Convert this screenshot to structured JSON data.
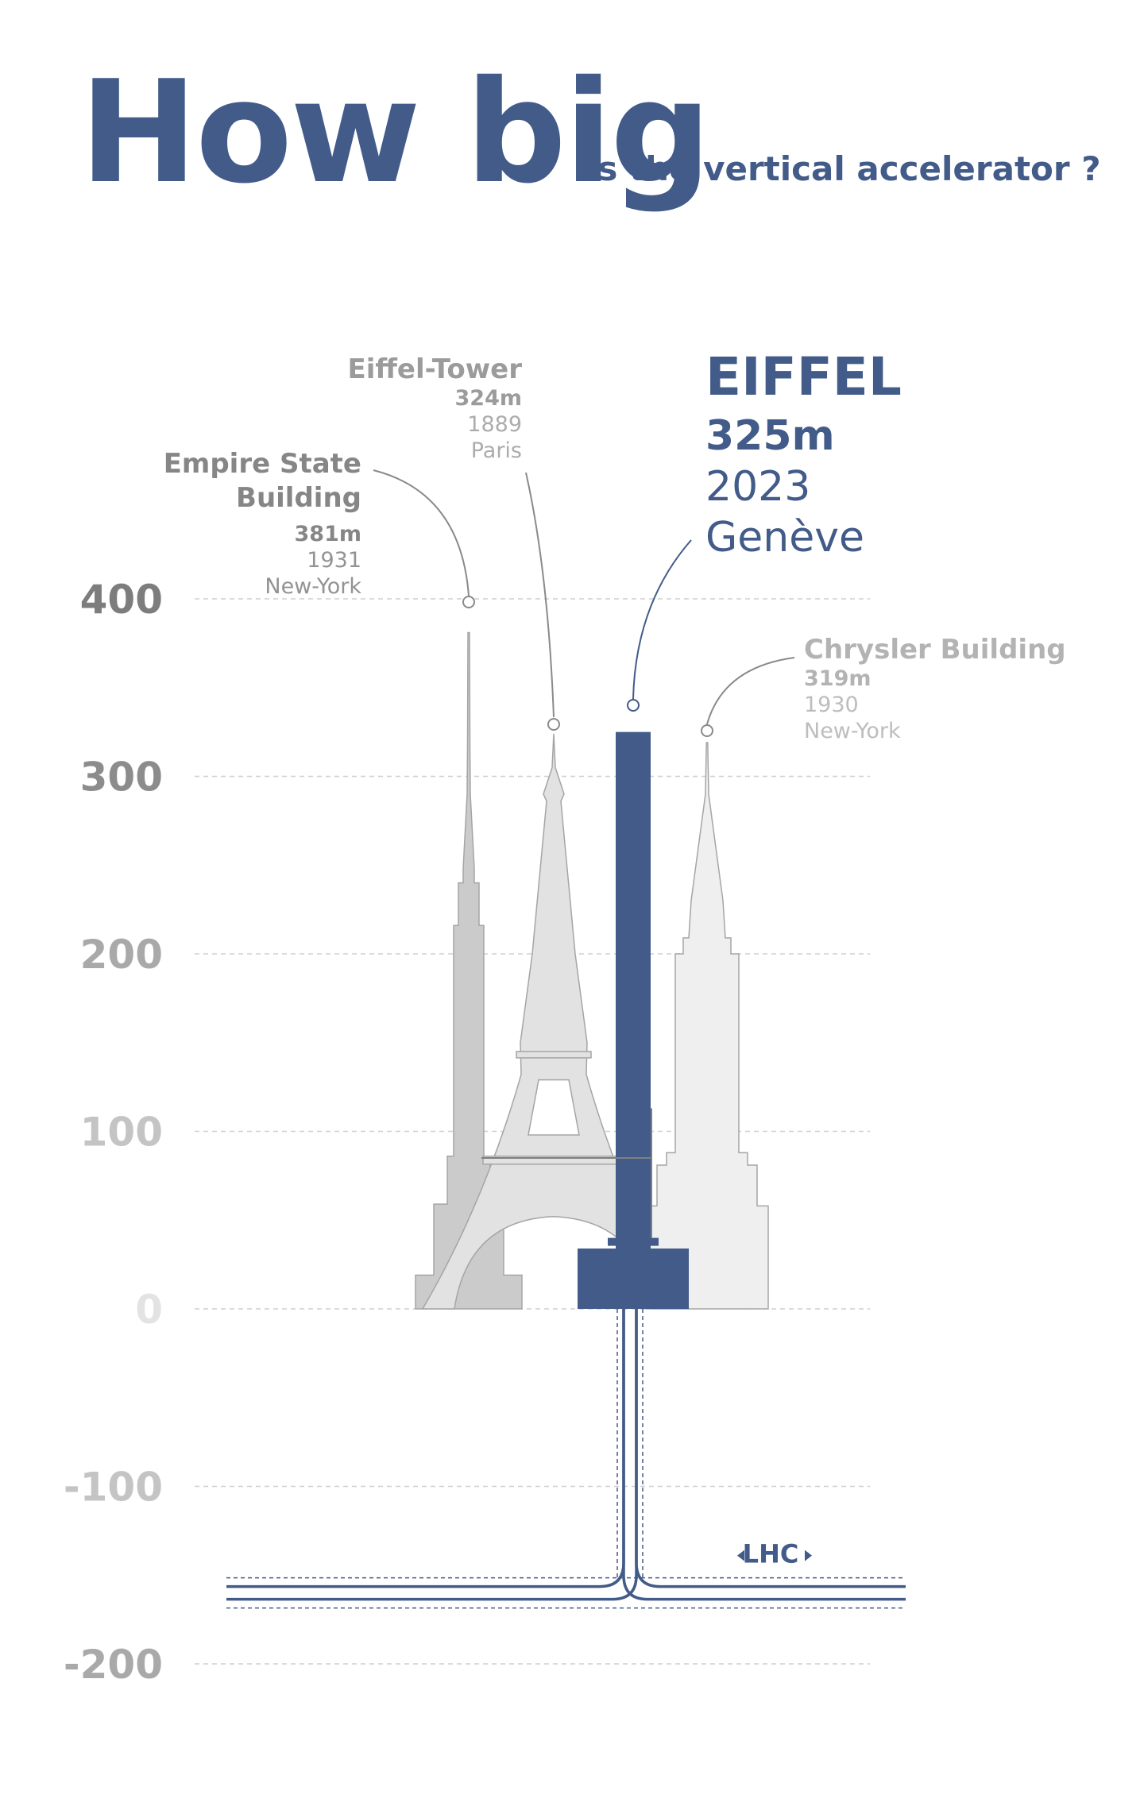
{
  "header": {
    "title": "How big",
    "subtitle": "is the vertical accelerator ?"
  },
  "colors": {
    "accent": "#425b89",
    "empire": "#cbcbcb",
    "eiffel_tower": "#e2e2e2",
    "chrysler": "#efefef"
  },
  "chart_data": {
    "type": "bar",
    "y_unit": "m",
    "ylim": [
      -200,
      400
    ],
    "yticks": [
      400,
      300,
      200,
      100,
      0,
      -100,
      -200
    ],
    "ytick_labels": [
      "400",
      "300",
      "200",
      "100",
      "0",
      "-100",
      "-200"
    ],
    "grid": true,
    "structures": [
      {
        "key": "empire",
        "name": "Empire State Building",
        "name_lines": [
          "Empire State",
          "Building"
        ],
        "height_label": "381m",
        "height": 381,
        "year": "1931",
        "place": "New-York",
        "shape": "empire-state-silhouette"
      },
      {
        "key": "eiffel_tower",
        "name": "Eiffel-Tower",
        "name_lines": [
          "Eiffel-Tower"
        ],
        "height_label": "324m",
        "height": 324,
        "year": "1889",
        "place": "Paris",
        "shape": "eiffel-tower-silhouette"
      },
      {
        "key": "eiffel",
        "name": "EIFFEL",
        "name_lines": [
          "EIFFEL"
        ],
        "height_label": "325m",
        "height": 325,
        "year": "2023",
        "place": "Genève",
        "shape": "vertical-accelerator-column"
      },
      {
        "key": "chrysler",
        "name": "Chrysler Building",
        "name_lines": [
          "Chrysler Building"
        ],
        "height_label": "319m",
        "height": 319,
        "year": "1930",
        "place": "New-York",
        "shape": "chrysler-silhouette"
      }
    ],
    "underground": {
      "label": "LHC",
      "depth": -160
    }
  }
}
